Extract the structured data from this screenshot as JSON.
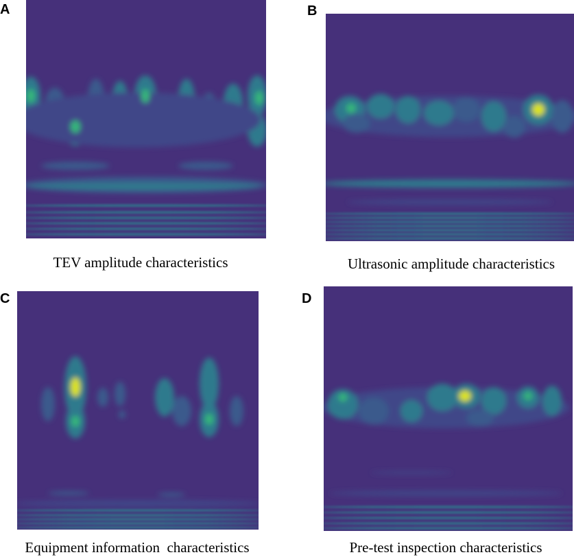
{
  "panels": [
    {
      "letter": "A",
      "caption": "TEV amplitude characteristics"
    },
    {
      "letter": "B",
      "caption": "Ultrasonic amplitude characteristics"
    },
    {
      "letter": "C",
      "caption": "Equipment information  characteristics"
    },
    {
      "letter": "D",
      "caption": "Pre-test inspection characteristics"
    }
  ]
}
